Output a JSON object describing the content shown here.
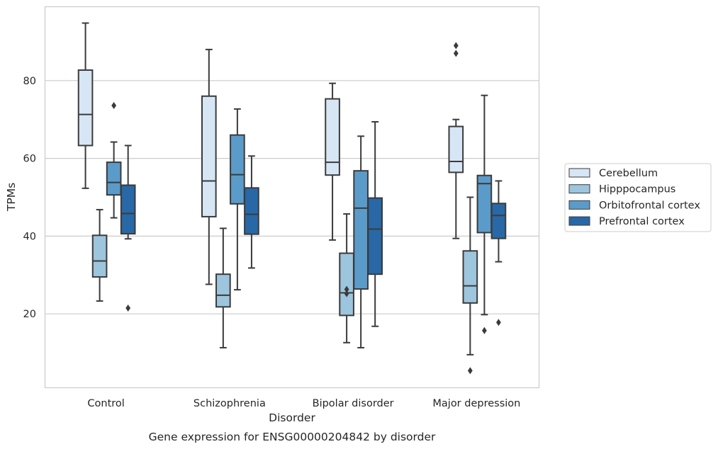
{
  "chart_data": {
    "type": "box",
    "title": "Gene expression for ENSG00000204842 by disorder",
    "xlabel": "Disorder",
    "ylabel": "TPMs",
    "ylim": [
      1,
      99
    ],
    "yticks": [
      20,
      40,
      60,
      80
    ],
    "grid": "horizontal",
    "legend_position": "right",
    "categories": [
      "Control",
      "Schizophrenia",
      "Bipolar disorder",
      "Major depression"
    ],
    "series": [
      {
        "name": "Cerebellum",
        "color": "#d7e6f4",
        "boxes": [
          {
            "whisker_low": 52.3,
            "q1": 63.3,
            "median": 71.3,
            "q3": 82.7,
            "whisker_high": 94.8,
            "outliers": []
          },
          {
            "whisker_low": 27.6,
            "q1": 45.0,
            "median": 54.2,
            "q3": 76.0,
            "whisker_high": 88.0,
            "outliers": []
          },
          {
            "whisker_low": 39.0,
            "q1": 55.7,
            "median": 59.0,
            "q3": 75.3,
            "whisker_high": 79.3,
            "outliers": []
          },
          {
            "whisker_low": 39.4,
            "q1": 56.4,
            "median": 59.2,
            "q3": 68.2,
            "whisker_high": 70.0,
            "outliers": [
              87.0,
              89.0
            ]
          }
        ]
      },
      {
        "name": "Hipppocampus",
        "color": "#9dc5dd",
        "boxes": [
          {
            "whisker_low": 23.3,
            "q1": 29.5,
            "median": 33.6,
            "q3": 40.2,
            "whisker_high": 46.8,
            "outliers": []
          },
          {
            "whisker_low": 11.3,
            "q1": 21.8,
            "median": 24.8,
            "q3": 30.2,
            "whisker_high": 42.0,
            "outliers": []
          },
          {
            "whisker_low": 12.6,
            "q1": 19.6,
            "median": 25.4,
            "q3": 35.6,
            "whisker_high": 45.7,
            "outliers": [
              25.2,
              26.3
            ]
          },
          {
            "whisker_low": 9.5,
            "q1": 22.8,
            "median": 27.2,
            "q3": 36.2,
            "whisker_high": 50.0,
            "outliers": [
              5.4
            ]
          }
        ]
      },
      {
        "name": "Orbitofrontal cortex",
        "color": "#5b9bc9",
        "boxes": [
          {
            "whisker_low": 44.7,
            "q1": 50.6,
            "median": 53.8,
            "q3": 59.0,
            "whisker_high": 64.2,
            "outliers": [
              73.6
            ]
          },
          {
            "whisker_low": 26.2,
            "q1": 48.3,
            "median": 55.8,
            "q3": 66.0,
            "whisker_high": 72.7,
            "outliers": []
          },
          {
            "whisker_low": 11.3,
            "q1": 26.4,
            "median": 47.2,
            "q3": 56.8,
            "whisker_high": 65.7,
            "outliers": []
          },
          {
            "whisker_low": 19.8,
            "q1": 40.9,
            "median": 53.5,
            "q3": 55.6,
            "whisker_high": 76.2,
            "outliers": [
              15.7
            ]
          }
        ]
      },
      {
        "name": "Prefrontal cortex",
        "color": "#2868a6",
        "boxes": [
          {
            "whisker_low": 39.3,
            "q1": 40.6,
            "median": 45.8,
            "q3": 53.1,
            "whisker_high": 63.3,
            "outliers": [
              21.5
            ]
          },
          {
            "whisker_low": 31.8,
            "q1": 40.5,
            "median": 45.6,
            "q3": 52.4,
            "whisker_high": 60.6,
            "outliers": []
          },
          {
            "whisker_low": 16.8,
            "q1": 30.2,
            "median": 41.8,
            "q3": 49.8,
            "whisker_high": 69.4,
            "outliers": []
          },
          {
            "whisker_low": 33.4,
            "q1": 39.4,
            "median": 45.3,
            "q3": 48.4,
            "whisker_high": 54.2,
            "outliers": [
              17.8
            ]
          }
        ]
      }
    ]
  }
}
